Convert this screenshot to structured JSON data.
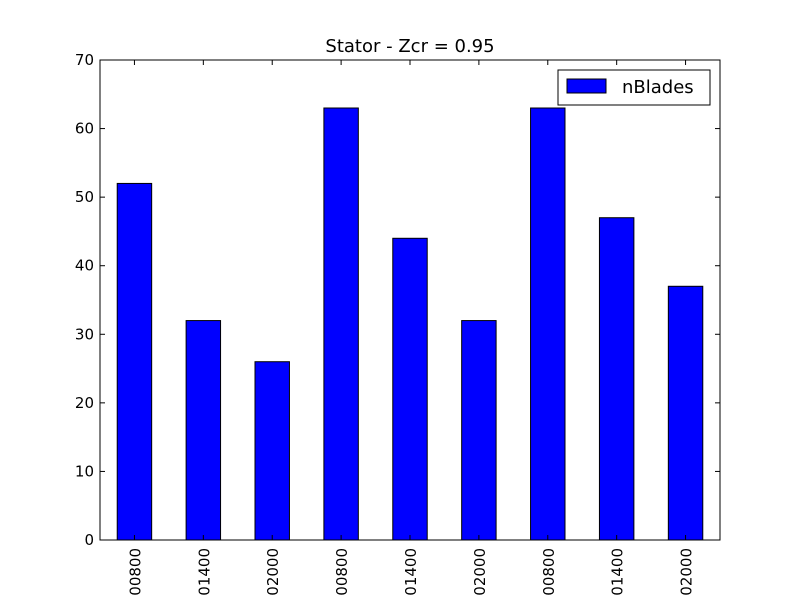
{
  "chart_data": {
    "type": "bar",
    "title": "Stator - Zcr = 0.95",
    "categories": [
      "00800",
      "01400",
      "02000",
      "00800",
      "01400",
      "02000",
      "00800",
      "01400",
      "02000"
    ],
    "series": [
      {
        "name": "nBlades",
        "values": [
          52,
          32,
          26,
          63,
          44,
          32,
          63,
          47,
          37
        ]
      }
    ],
    "ylim": [
      0,
      70
    ],
    "yticks": [
      0,
      10,
      20,
      30,
      40,
      50,
      60,
      70
    ],
    "xlabel": "",
    "ylabel": "",
    "grid": false,
    "legend_position": "top-right",
    "bar_color": "#0000ff"
  }
}
